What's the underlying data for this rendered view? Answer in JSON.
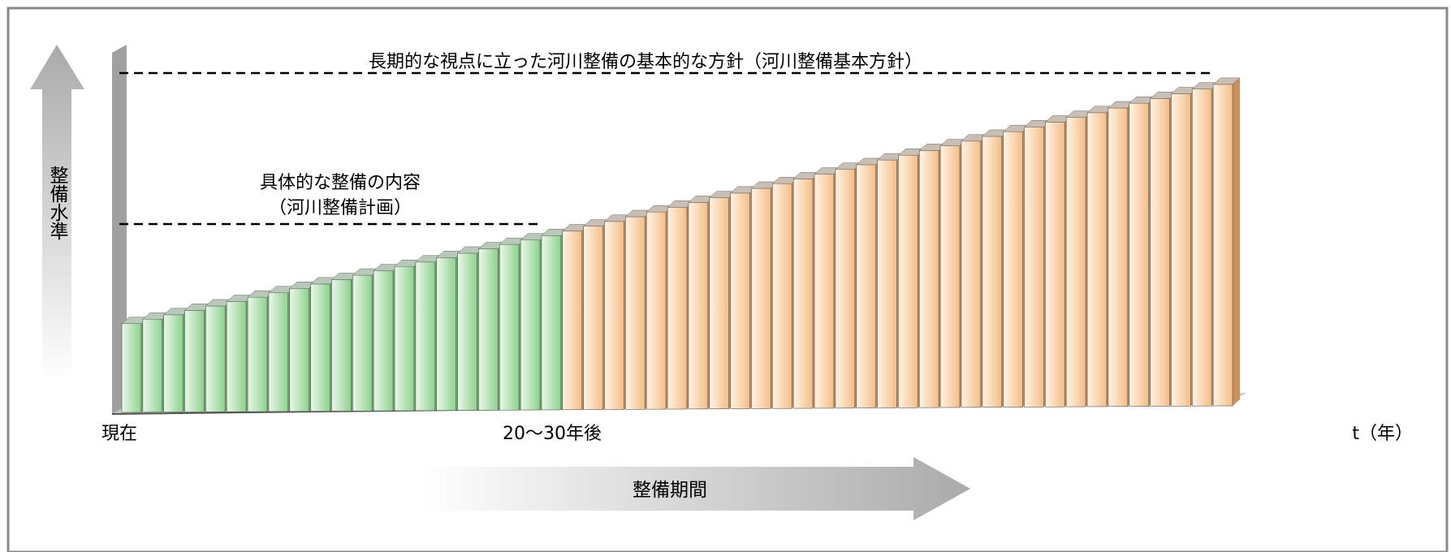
{
  "chart_data": {
    "type": "bar",
    "title": "",
    "xlabel": "整備期間",
    "ylabel": "整備水準",
    "x_ticks": [
      "現在",
      "20～30年後",
      "t（年）"
    ],
    "annotations": {
      "policy_line": "長期的な視点に立った河川整備の基本的な方針（河川整備基本方針）",
      "plan_line_1": "具体的な整備の内容",
      "plan_line_2": "（河川整備計画）"
    },
    "ylim": [
      0,
      100
    ],
    "series": [
      {
        "values": [
          27,
          28.3,
          29.6,
          30.9,
          32.2,
          33.5,
          34.8,
          36.1,
          37.4,
          38.7,
          40,
          41.3,
          42.6,
          43.9,
          45.2,
          46.5,
          47.8,
          49.1,
          50.4,
          51.7,
          53
        ]
      },
      {
        "values": [
          54.4,
          55.8,
          57.2,
          58.6,
          60,
          61.4,
          62.8,
          64.2,
          65.6,
          67,
          68.4,
          69.8,
          71.2,
          72.6,
          74,
          75.4,
          76.8,
          78.2,
          79.6,
          81,
          82.4,
          83.8,
          85.2,
          86.6,
          88,
          89.4,
          90.8,
          92.2,
          93.6,
          95,
          96.4,
          97.8
        ]
      }
    ]
  },
  "colors": {
    "green_light": "#e9f7e9",
    "green_dark": "#8dd28d",
    "orange_light": "#fff3e4",
    "orange_dark": "#f4be86",
    "bar_top": "#b8b8b8",
    "axis_gray": "#9a9a9a",
    "frame": "#888888"
  }
}
